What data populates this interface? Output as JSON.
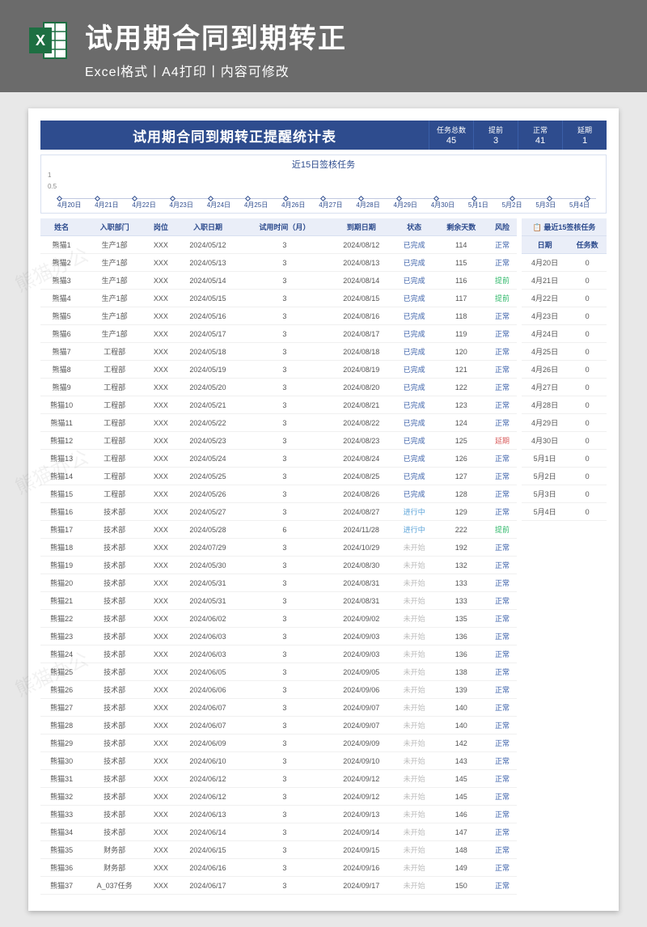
{
  "header": {
    "title": "试用期合同到期转正",
    "subtitle": "Excel格式丨A4打印丨内容可修改"
  },
  "doc": {
    "title": "试用期合同到期转正提醒统计表",
    "stats": [
      {
        "label": "任务总数",
        "value": "45"
      },
      {
        "label": "提前",
        "value": "3"
      },
      {
        "label": "正常",
        "value": "41"
      },
      {
        "label": "延期",
        "value": "1"
      }
    ]
  },
  "chart": {
    "title": "近15日签核任务",
    "ylim": [
      0,
      1
    ],
    "ytick_labels": [
      "0.5",
      "1"
    ],
    "points": [
      0,
      0,
      0,
      0,
      0,
      0,
      0,
      0,
      0,
      0,
      0,
      0,
      0,
      0,
      0
    ],
    "xlabels": [
      "4月20日",
      "4月21日",
      "4月22日",
      "4月23日",
      "4月24日",
      "4月25日",
      "4月26日",
      "4月27日",
      "4月28日",
      "4月29日",
      "4月30日",
      "5月1日",
      "5月2日",
      "5月3日",
      "5月4日"
    ],
    "colors": {
      "line": "#2e4c8e",
      "grid": "#c0c8e0",
      "bg": "#ffffff"
    }
  },
  "table": {
    "columns": [
      "姓名",
      "入职部门",
      "岗位",
      "入职日期",
      "试用时间（月）",
      "到期日期",
      "状态",
      "剩余天数",
      "风险"
    ],
    "rows": [
      [
        "熊猫1",
        "生产1部",
        "XXX",
        "2024/05/12",
        "3",
        "2024/08/12",
        "已完成",
        "114",
        "正常"
      ],
      [
        "熊猫2",
        "生产1部",
        "XXX",
        "2024/05/13",
        "3",
        "2024/08/13",
        "已完成",
        "115",
        "正常"
      ],
      [
        "熊猫3",
        "生产1部",
        "XXX",
        "2024/05/14",
        "3",
        "2024/08/14",
        "已完成",
        "116",
        "提前"
      ],
      [
        "熊猫4",
        "生产1部",
        "XXX",
        "2024/05/15",
        "3",
        "2024/08/15",
        "已完成",
        "117",
        "提前"
      ],
      [
        "熊猫5",
        "生产1部",
        "XXX",
        "2024/05/16",
        "3",
        "2024/08/16",
        "已完成",
        "118",
        "正常"
      ],
      [
        "熊猫6",
        "生产1部",
        "XXX",
        "2024/05/17",
        "3",
        "2024/08/17",
        "已完成",
        "119",
        "正常"
      ],
      [
        "熊猫7",
        "工程部",
        "XXX",
        "2024/05/18",
        "3",
        "2024/08/18",
        "已完成",
        "120",
        "正常"
      ],
      [
        "熊猫8",
        "工程部",
        "XXX",
        "2024/05/19",
        "3",
        "2024/08/19",
        "已完成",
        "121",
        "正常"
      ],
      [
        "熊猫9",
        "工程部",
        "XXX",
        "2024/05/20",
        "3",
        "2024/08/20",
        "已完成",
        "122",
        "正常"
      ],
      [
        "熊猫10",
        "工程部",
        "XXX",
        "2024/05/21",
        "3",
        "2024/08/21",
        "已完成",
        "123",
        "正常"
      ],
      [
        "熊猫11",
        "工程部",
        "XXX",
        "2024/05/22",
        "3",
        "2024/08/22",
        "已完成",
        "124",
        "正常"
      ],
      [
        "熊猫12",
        "工程部",
        "XXX",
        "2024/05/23",
        "3",
        "2024/08/23",
        "已完成",
        "125",
        "延期"
      ],
      [
        "熊猫13",
        "工程部",
        "XXX",
        "2024/05/24",
        "3",
        "2024/08/24",
        "已完成",
        "126",
        "正常"
      ],
      [
        "熊猫14",
        "工程部",
        "XXX",
        "2024/05/25",
        "3",
        "2024/08/25",
        "已完成",
        "127",
        "正常"
      ],
      [
        "熊猫15",
        "工程部",
        "XXX",
        "2024/05/26",
        "3",
        "2024/08/26",
        "已完成",
        "128",
        "正常"
      ],
      [
        "熊猫16",
        "技术部",
        "XXX",
        "2024/05/27",
        "3",
        "2024/08/27",
        "进行中",
        "129",
        "正常"
      ],
      [
        "熊猫17",
        "技术部",
        "XXX",
        "2024/05/28",
        "6",
        "2024/11/28",
        "进行中",
        "222",
        "提前"
      ],
      [
        "熊猫18",
        "技术部",
        "XXX",
        "2024/07/29",
        "3",
        "2024/10/29",
        "未开始",
        "192",
        "正常"
      ],
      [
        "熊猫19",
        "技术部",
        "XXX",
        "2024/05/30",
        "3",
        "2024/08/30",
        "未开始",
        "132",
        "正常"
      ],
      [
        "熊猫20",
        "技术部",
        "XXX",
        "2024/05/31",
        "3",
        "2024/08/31",
        "未开始",
        "133",
        "正常"
      ],
      [
        "熊猫21",
        "技术部",
        "XXX",
        "2024/05/31",
        "3",
        "2024/08/31",
        "未开始",
        "133",
        "正常"
      ],
      [
        "熊猫22",
        "技术部",
        "XXX",
        "2024/06/02",
        "3",
        "2024/09/02",
        "未开始",
        "135",
        "正常"
      ],
      [
        "熊猫23",
        "技术部",
        "XXX",
        "2024/06/03",
        "3",
        "2024/09/03",
        "未开始",
        "136",
        "正常"
      ],
      [
        "熊猫24",
        "技术部",
        "XXX",
        "2024/06/03",
        "3",
        "2024/09/03",
        "未开始",
        "136",
        "正常"
      ],
      [
        "熊猫25",
        "技术部",
        "XXX",
        "2024/06/05",
        "3",
        "2024/09/05",
        "未开始",
        "138",
        "正常"
      ],
      [
        "熊猫26",
        "技术部",
        "XXX",
        "2024/06/06",
        "3",
        "2024/09/06",
        "未开始",
        "139",
        "正常"
      ],
      [
        "熊猫27",
        "技术部",
        "XXX",
        "2024/06/07",
        "3",
        "2024/09/07",
        "未开始",
        "140",
        "正常"
      ],
      [
        "熊猫28",
        "技术部",
        "XXX",
        "2024/06/07",
        "3",
        "2024/09/07",
        "未开始",
        "140",
        "正常"
      ],
      [
        "熊猫29",
        "技术部",
        "XXX",
        "2024/06/09",
        "3",
        "2024/09/09",
        "未开始",
        "142",
        "正常"
      ],
      [
        "熊猫30",
        "技术部",
        "XXX",
        "2024/06/10",
        "3",
        "2024/09/10",
        "未开始",
        "143",
        "正常"
      ],
      [
        "熊猫31",
        "技术部",
        "XXX",
        "2024/06/12",
        "3",
        "2024/09/12",
        "未开始",
        "145",
        "正常"
      ],
      [
        "熊猫32",
        "技术部",
        "XXX",
        "2024/06/12",
        "3",
        "2024/09/12",
        "未开始",
        "145",
        "正常"
      ],
      [
        "熊猫33",
        "技术部",
        "XXX",
        "2024/06/13",
        "3",
        "2024/09/13",
        "未开始",
        "146",
        "正常"
      ],
      [
        "熊猫34",
        "技术部",
        "XXX",
        "2024/06/14",
        "3",
        "2024/09/14",
        "未开始",
        "147",
        "正常"
      ],
      [
        "熊猫35",
        "财务部",
        "XXX",
        "2024/06/15",
        "3",
        "2024/09/15",
        "未开始",
        "148",
        "正常"
      ],
      [
        "熊猫36",
        "财务部",
        "XXX",
        "2024/06/16",
        "3",
        "2024/09/16",
        "未开始",
        "149",
        "正常"
      ],
      [
        "熊猫37",
        "A_037任务",
        "XXX",
        "2024/06/17",
        "3",
        "2024/09/17",
        "未开始",
        "150",
        "正常"
      ]
    ],
    "status_classes": {
      "已完成": "status-done",
      "进行中": "status-ing",
      "未开始": "status-wait"
    },
    "risk_classes": {
      "正常": "risk-normal",
      "提前": "risk-early",
      "延期": "risk-over"
    }
  },
  "side": {
    "title": "📋 最近15签核任务",
    "columns": [
      "日期",
      "任务数"
    ],
    "rows": [
      [
        "4月20日",
        "0"
      ],
      [
        "4月21日",
        "0"
      ],
      [
        "4月22日",
        "0"
      ],
      [
        "4月23日",
        "0"
      ],
      [
        "4月24日",
        "0"
      ],
      [
        "4月25日",
        "0"
      ],
      [
        "4月26日",
        "0"
      ],
      [
        "4月27日",
        "0"
      ],
      [
        "4月28日",
        "0"
      ],
      [
        "4月29日",
        "0"
      ],
      [
        "4月30日",
        "0"
      ],
      [
        "5月1日",
        "0"
      ],
      [
        "5月2日",
        "0"
      ],
      [
        "5月3日",
        "0"
      ],
      [
        "5月4日",
        "0"
      ]
    ]
  },
  "watermark": "熊猫办公"
}
